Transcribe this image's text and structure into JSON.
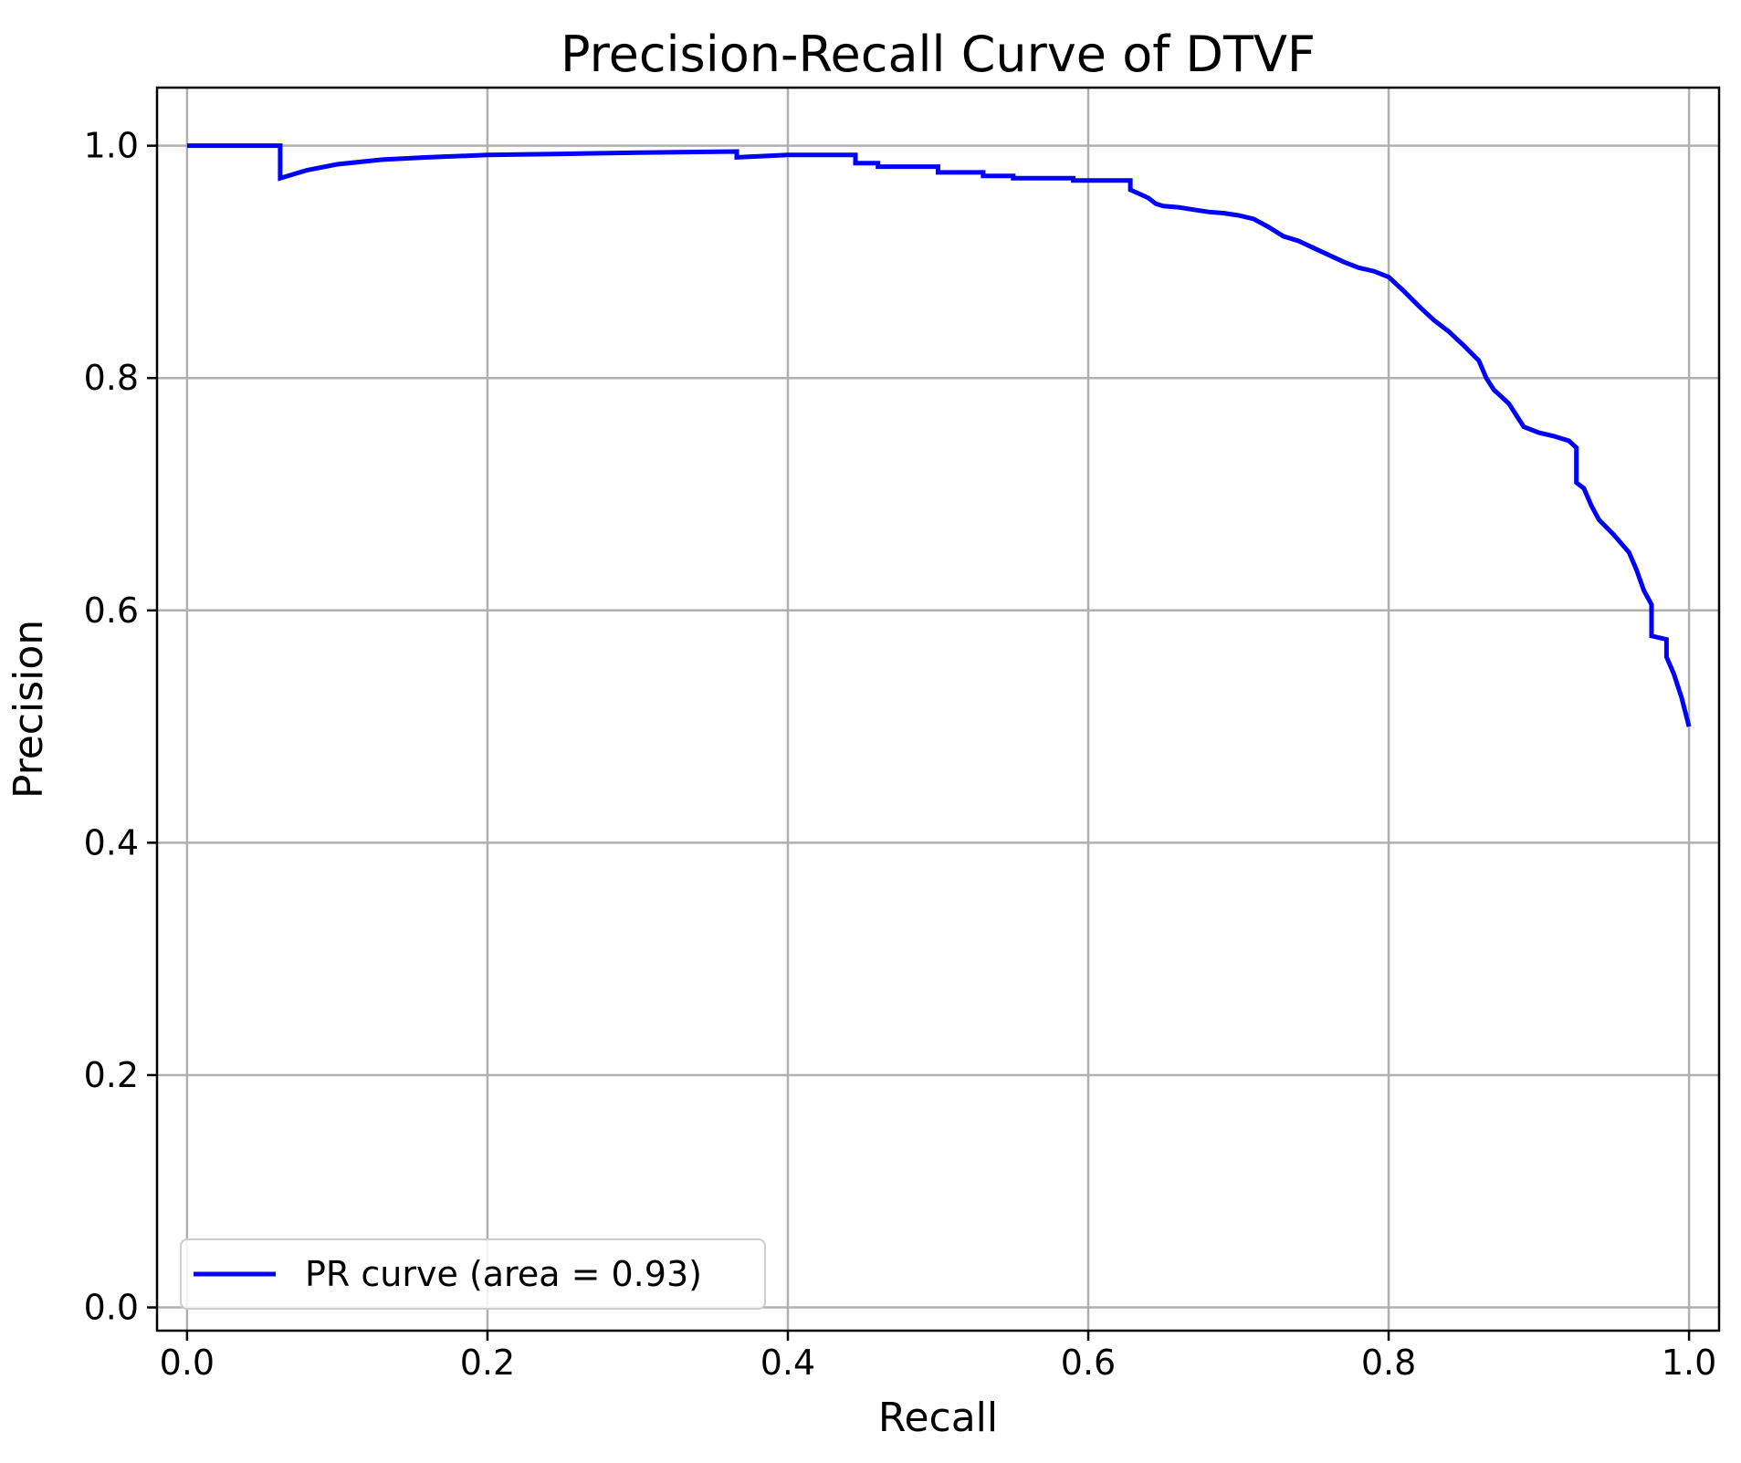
{
  "chart_data": {
    "type": "line",
    "title": "Precision-Recall Curve of DTVF",
    "xlabel": "Recall",
    "ylabel": "Precision",
    "xlim": [
      -0.02,
      1.02
    ],
    "ylim": [
      -0.02,
      1.05
    ],
    "xticks": [
      "0.0",
      "0.2",
      "0.4",
      "0.6",
      "0.8",
      "1.0"
    ],
    "yticks": [
      "0.0",
      "0.2",
      "0.4",
      "0.6",
      "0.8",
      "1.0"
    ],
    "grid": true,
    "legend_position": "lower-left",
    "series": [
      {
        "name": "PR curve (area = 0.93)",
        "color": "#0000ff",
        "x": [
          0.0,
          0.062,
          0.062,
          0.08,
          0.1,
          0.13,
          0.16,
          0.2,
          0.25,
          0.3,
          0.366,
          0.366,
          0.4,
          0.445,
          0.445,
          0.46,
          0.46,
          0.5,
          0.5,
          0.53,
          0.53,
          0.55,
          0.55,
          0.59,
          0.59,
          0.628,
          0.628,
          0.635,
          0.64,
          0.645,
          0.65,
          0.66,
          0.67,
          0.68,
          0.69,
          0.7,
          0.71,
          0.72,
          0.73,
          0.74,
          0.75,
          0.76,
          0.77,
          0.78,
          0.79,
          0.8,
          0.81,
          0.82,
          0.83,
          0.84,
          0.85,
          0.86,
          0.865,
          0.87,
          0.88,
          0.885,
          0.89,
          0.9,
          0.91,
          0.92,
          0.925,
          0.925,
          0.93,
          0.935,
          0.94,
          0.95,
          0.96,
          0.965,
          0.97,
          0.975,
          0.975,
          0.985,
          0.985,
          0.99,
          0.995,
          0.998,
          1.0
        ],
        "y": [
          1.0,
          1.0,
          0.972,
          0.979,
          0.984,
          0.988,
          0.99,
          0.992,
          0.993,
          0.994,
          0.995,
          0.99,
          0.992,
          0.992,
          0.985,
          0.985,
          0.982,
          0.982,
          0.977,
          0.977,
          0.974,
          0.974,
          0.972,
          0.972,
          0.97,
          0.97,
          0.962,
          0.958,
          0.955,
          0.95,
          0.948,
          0.947,
          0.945,
          0.943,
          0.942,
          0.94,
          0.937,
          0.93,
          0.922,
          0.918,
          0.912,
          0.906,
          0.9,
          0.895,
          0.892,
          0.887,
          0.875,
          0.862,
          0.85,
          0.84,
          0.828,
          0.815,
          0.8,
          0.79,
          0.778,
          0.768,
          0.758,
          0.753,
          0.75,
          0.746,
          0.74,
          0.71,
          0.705,
          0.69,
          0.678,
          0.665,
          0.65,
          0.635,
          0.617,
          0.605,
          0.578,
          0.575,
          0.56,
          0.545,
          0.525,
          0.51,
          0.5
        ]
      }
    ]
  }
}
